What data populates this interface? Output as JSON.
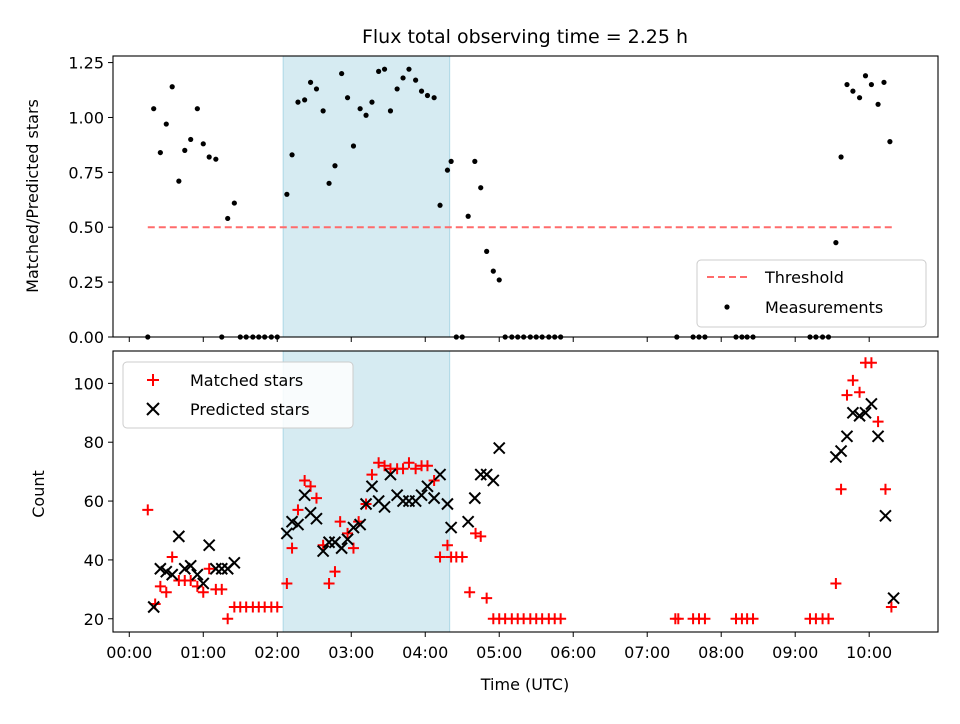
{
  "chart_data": [
    {
      "type": "scatter",
      "title": "Flux total observing time = 2.25 h",
      "xlabel": "",
      "ylabel": "Matched/Predicted stars",
      "xlim": [
        -0.22,
        10.93
      ],
      "ylim": [
        0,
        1.28
      ],
      "yticks": [
        0.0,
        0.25,
        0.5,
        0.75,
        1.0,
        1.25
      ],
      "ytick_labels": [
        "0.00",
        "0.25",
        "0.50",
        "0.75",
        "1.00",
        "1.25"
      ],
      "highlight_span": {
        "x": [
          2.08,
          4.33
        ],
        "color": "#add8e6"
      },
      "threshold": {
        "name": "Threshold",
        "value": 0.5,
        "x": [
          0.25,
          10.33
        ],
        "color": "#ff6b6b"
      },
      "legend": {
        "placement": "lower-right",
        "entries": [
          "Threshold",
          "Measurements"
        ]
      },
      "series": [
        {
          "name": "Measurements",
          "color": "#000000",
          "points": [
            [
              0.25,
              0
            ],
            [
              0.33,
              1.04
            ],
            [
              0.42,
              0.84
            ],
            [
              0.5,
              0.97
            ],
            [
              0.58,
              1.14
            ],
            [
              0.67,
              0.71
            ],
            [
              0.75,
              0.85
            ],
            [
              0.83,
              0.9
            ],
            [
              0.92,
              1.04
            ],
            [
              1.0,
              0.88
            ],
            [
              1.08,
              0.82
            ],
            [
              1.17,
              0.81
            ],
            [
              1.25,
              0
            ],
            [
              1.33,
              0.54
            ],
            [
              1.42,
              0.61
            ],
            [
              1.5,
              0
            ],
            [
              1.58,
              0
            ],
            [
              1.67,
              0
            ],
            [
              1.75,
              0
            ],
            [
              1.83,
              0
            ],
            [
              1.92,
              0
            ],
            [
              2.0,
              0
            ],
            [
              2.13,
              0.65
            ],
            [
              2.2,
              0.83
            ],
            [
              2.28,
              1.07
            ],
            [
              2.37,
              1.08
            ],
            [
              2.45,
              1.16
            ],
            [
              2.53,
              1.13
            ],
            [
              2.62,
              1.03
            ],
            [
              2.7,
              0.7
            ],
            [
              2.78,
              0.78
            ],
            [
              2.87,
              1.2
            ],
            [
              2.95,
              1.09
            ],
            [
              3.03,
              0.87
            ],
            [
              3.12,
              1.04
            ],
            [
              3.2,
              1.01
            ],
            [
              3.28,
              1.07
            ],
            [
              3.37,
              1.21
            ],
            [
              3.45,
              1.22
            ],
            [
              3.53,
              1.03
            ],
            [
              3.62,
              1.13
            ],
            [
              3.7,
              1.18
            ],
            [
              3.78,
              1.22
            ],
            [
              3.87,
              1.17
            ],
            [
              3.95,
              1.12
            ],
            [
              4.03,
              1.1
            ],
            [
              4.12,
              1.09
            ],
            [
              4.2,
              0.6
            ],
            [
              4.3,
              0.76
            ],
            [
              4.35,
              0.8
            ],
            [
              4.42,
              0
            ],
            [
              4.5,
              0
            ],
            [
              4.58,
              0.55
            ],
            [
              4.67,
              0.8
            ],
            [
              4.75,
              0.68
            ],
            [
              4.83,
              0.39
            ],
            [
              4.92,
              0.3
            ],
            [
              5.0,
              0.26
            ],
            [
              5.08,
              0
            ],
            [
              5.17,
              0
            ],
            [
              5.25,
              0
            ],
            [
              5.33,
              0
            ],
            [
              5.42,
              0
            ],
            [
              5.5,
              0
            ],
            [
              5.58,
              0
            ],
            [
              5.67,
              0
            ],
            [
              5.75,
              0
            ],
            [
              5.83,
              0
            ],
            [
              7.4,
              0
            ],
            [
              7.62,
              0
            ],
            [
              7.7,
              0
            ],
            [
              7.78,
              0
            ],
            [
              8.2,
              0
            ],
            [
              8.28,
              0
            ],
            [
              8.35,
              0
            ],
            [
              8.43,
              0
            ],
            [
              9.2,
              0
            ],
            [
              9.28,
              0
            ],
            [
              9.37,
              0
            ],
            [
              9.45,
              0
            ],
            [
              9.55,
              0.43
            ],
            [
              9.62,
              0.82
            ],
            [
              9.7,
              1.15
            ],
            [
              9.78,
              1.12
            ],
            [
              9.87,
              1.09
            ],
            [
              9.95,
              1.19
            ],
            [
              10.03,
              1.15
            ],
            [
              10.12,
              1.06
            ],
            [
              10.2,
              1.16
            ],
            [
              10.28,
              0.89
            ]
          ]
        }
      ]
    },
    {
      "type": "scatter",
      "title": "",
      "xlabel": "Time (UTC)",
      "ylabel": "Count",
      "xlim": [
        -0.22,
        10.93
      ],
      "ylim": [
        15.5,
        111
      ],
      "xticks": [
        0,
        1,
        2,
        3,
        4,
        5,
        6,
        7,
        8,
        9,
        10
      ],
      "xtick_labels": [
        "00:00",
        "01:00",
        "02:00",
        "03:00",
        "04:00",
        "05:00",
        "06:00",
        "07:00",
        "08:00",
        "09:00",
        "10:00"
      ],
      "yticks": [
        20,
        40,
        60,
        80,
        100
      ],
      "ytick_labels": [
        "20",
        "40",
        "60",
        "80",
        "100"
      ],
      "highlight_span": {
        "x": [
          2.08,
          4.33
        ],
        "color": "#add8e6"
      },
      "legend": {
        "placement": "upper-left",
        "entries": [
          "Matched stars",
          "Predicted stars"
        ]
      },
      "series": [
        {
          "name": "Matched stars",
          "color": "#ff0000",
          "points": [
            [
              0.25,
              57
            ],
            [
              0.35,
              25
            ],
            [
              0.42,
              31
            ],
            [
              0.5,
              29
            ],
            [
              0.58,
              41
            ],
            [
              0.67,
              33
            ],
            [
              0.75,
              33
            ],
            [
              0.83,
              33
            ],
            [
              0.92,
              31
            ],
            [
              1.0,
              29
            ],
            [
              1.08,
              37
            ],
            [
              1.17,
              30
            ],
            [
              1.25,
              30
            ],
            [
              1.33,
              20
            ],
            [
              1.42,
              24
            ],
            [
              1.5,
              24
            ],
            [
              1.58,
              24
            ],
            [
              1.67,
              24
            ],
            [
              1.75,
              24
            ],
            [
              1.83,
              24
            ],
            [
              1.92,
              24
            ],
            [
              2.0,
              24
            ],
            [
              2.13,
              32
            ],
            [
              2.2,
              44
            ],
            [
              2.28,
              57
            ],
            [
              2.37,
              67
            ],
            [
              2.45,
              65
            ],
            [
              2.53,
              61
            ],
            [
              2.62,
              45
            ],
            [
              2.7,
              32
            ],
            [
              2.78,
              36
            ],
            [
              2.85,
              53
            ],
            [
              2.95,
              49
            ],
            [
              3.03,
              44
            ],
            [
              3.1,
              53
            ],
            [
              3.2,
              59
            ],
            [
              3.28,
              69
            ],
            [
              3.37,
              73
            ],
            [
              3.45,
              72
            ],
            [
              3.53,
              71
            ],
            [
              3.62,
              71
            ],
            [
              3.7,
              71
            ],
            [
              3.78,
              73
            ],
            [
              3.87,
              71
            ],
            [
              3.95,
              72
            ],
            [
              4.03,
              72
            ],
            [
              4.12,
              67
            ],
            [
              4.2,
              41
            ],
            [
              4.3,
              45
            ],
            [
              4.35,
              41
            ],
            [
              4.42,
              41
            ],
            [
              4.5,
              41
            ],
            [
              4.6,
              29
            ],
            [
              4.68,
              49
            ],
            [
              4.75,
              48
            ],
            [
              4.83,
              27
            ],
            [
              4.92,
              20
            ],
            [
              5.0,
              20
            ],
            [
              5.08,
              20
            ],
            [
              5.17,
              20
            ],
            [
              5.25,
              20
            ],
            [
              5.33,
              20
            ],
            [
              5.42,
              20
            ],
            [
              5.5,
              20
            ],
            [
              5.58,
              20
            ],
            [
              5.67,
              20
            ],
            [
              5.75,
              20
            ],
            [
              5.83,
              20
            ],
            [
              7.38,
              20
            ],
            [
              7.42,
              20
            ],
            [
              7.62,
              20
            ],
            [
              7.7,
              20
            ],
            [
              7.78,
              20
            ],
            [
              8.2,
              20
            ],
            [
              8.28,
              20
            ],
            [
              8.35,
              20
            ],
            [
              8.43,
              20
            ],
            [
              9.2,
              20
            ],
            [
              9.28,
              20
            ],
            [
              9.37,
              20
            ],
            [
              9.45,
              20
            ],
            [
              9.55,
              32
            ],
            [
              9.62,
              64
            ],
            [
              9.7,
              96
            ],
            [
              9.78,
              101
            ],
            [
              9.87,
              97
            ],
            [
              9.95,
              107
            ],
            [
              10.03,
              107
            ],
            [
              10.12,
              87
            ],
            [
              10.22,
              64
            ],
            [
              10.3,
              24
            ]
          ]
        },
        {
          "name": "Predicted stars",
          "color": "#000000",
          "points": [
            [
              0.33,
              24
            ],
            [
              0.42,
              37
            ],
            [
              0.5,
              36
            ],
            [
              0.58,
              35
            ],
            [
              0.67,
              48
            ],
            [
              0.75,
              37
            ],
            [
              0.83,
              38
            ],
            [
              0.92,
              35
            ],
            [
              1.0,
              32
            ],
            [
              1.08,
              45
            ],
            [
              1.17,
              37
            ],
            [
              1.25,
              37
            ],
            [
              1.33,
              37
            ],
            [
              1.42,
              39
            ],
            [
              2.13,
              49
            ],
            [
              2.2,
              53
            ],
            [
              2.28,
              52
            ],
            [
              2.37,
              62
            ],
            [
              2.45,
              56
            ],
            [
              2.53,
              54
            ],
            [
              2.62,
              43
            ],
            [
              2.7,
              46
            ],
            [
              2.78,
              46
            ],
            [
              2.87,
              44
            ],
            [
              2.95,
              47
            ],
            [
              3.03,
              51
            ],
            [
              3.12,
              52
            ],
            [
              3.2,
              59
            ],
            [
              3.28,
              65
            ],
            [
              3.37,
              60
            ],
            [
              3.45,
              58
            ],
            [
              3.53,
              69
            ],
            [
              3.62,
              62
            ],
            [
              3.7,
              60
            ],
            [
              3.78,
              60
            ],
            [
              3.87,
              60
            ],
            [
              3.95,
              62
            ],
            [
              4.03,
              65
            ],
            [
              4.12,
              61
            ],
            [
              4.2,
              69
            ],
            [
              4.3,
              59
            ],
            [
              4.35,
              51
            ],
            [
              4.58,
              53
            ],
            [
              4.67,
              61
            ],
            [
              4.75,
              69
            ],
            [
              4.83,
              69
            ],
            [
              4.92,
              67
            ],
            [
              5.0,
              78
            ],
            [
              9.55,
              75
            ],
            [
              9.62,
              77
            ],
            [
              9.7,
              82
            ],
            [
              9.78,
              90
            ],
            [
              9.87,
              89
            ],
            [
              9.95,
              90
            ],
            [
              10.03,
              93
            ],
            [
              10.12,
              82
            ],
            [
              10.22,
              55
            ],
            [
              10.33,
              27
            ]
          ]
        }
      ]
    }
  ]
}
